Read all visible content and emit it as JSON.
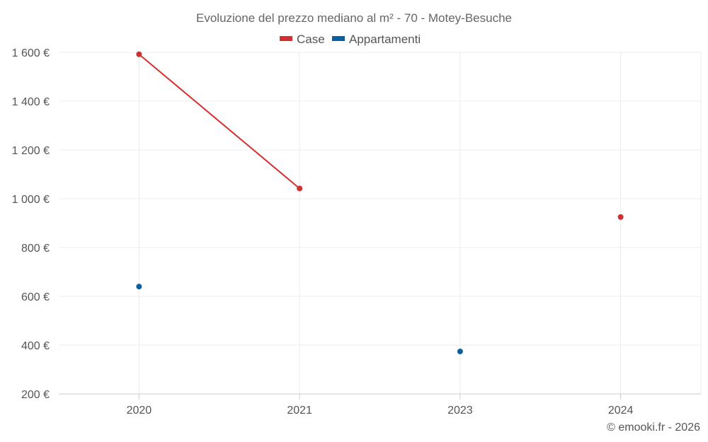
{
  "chart_data": {
    "type": "line",
    "title": "Evoluzione del prezzo mediano al m² - 70 - Motey-Besuche",
    "categories": [
      "2020",
      "2021",
      "2023",
      "2024"
    ],
    "ylim": [
      200,
      1600
    ],
    "y_ticks": [
      200,
      400,
      600,
      800,
      1000,
      1200,
      1400,
      1600
    ],
    "y_tick_labels": [
      "200 €",
      "400 €",
      "600 €",
      "800 €",
      "1 000 €",
      "1 200 €",
      "1 400 €",
      "1 600 €"
    ],
    "grid": true,
    "legend_position": "top-center",
    "series": [
      {
        "name": "Case",
        "color": "#d32f2f",
        "values": [
          1592,
          1042,
          null,
          925
        ]
      },
      {
        "name": "Appartamenti",
        "color": "#0a5f9e",
        "values": [
          640,
          null,
          374,
          null
        ]
      }
    ]
  },
  "credit": "© emooki.fr - 2026"
}
